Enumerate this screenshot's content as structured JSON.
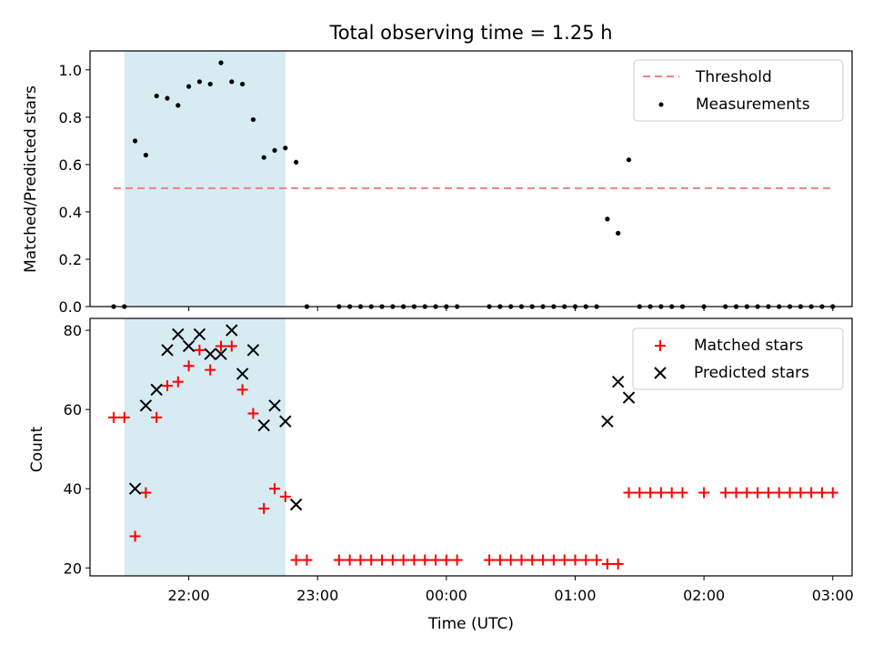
{
  "title": "Total observing time = 1.25 h",
  "colors": {
    "threshold": "#f08080",
    "measurement": "#000000",
    "matched": "#ff0000",
    "predicted": "#000000",
    "shade": "#add8e6"
  },
  "chart_data": [
    {
      "type": "scatter",
      "title": "Total observing time = 1.25 h",
      "ylabel": "Matched/Predicted stars",
      "xlabel": "",
      "ylim": [
        0,
        1.08
      ],
      "yticks": [
        "0.0",
        "0.2",
        "0.4",
        "0.6",
        "0.8",
        "1.0"
      ],
      "xlim": [
        "21:14",
        "03:09"
      ],
      "grid": false,
      "legend": "top-right",
      "shaded_region": [
        "21:30",
        "22:45"
      ],
      "threshold": {
        "name": "Threshold",
        "y": 0.5,
        "x": [
          "21:25",
          "03:00"
        ]
      },
      "series": [
        {
          "name": "Measurements",
          "points": [
            [
              "21:25",
              0
            ],
            [
              "21:30",
              0
            ],
            [
              "21:35",
              0.7
            ],
            [
              "21:40",
              0.64
            ],
            [
              "21:45",
              0.89
            ],
            [
              "21:50",
              0.88
            ],
            [
              "21:55",
              0.85
            ],
            [
              "22:00",
              0.93
            ],
            [
              "22:05",
              0.95
            ],
            [
              "22:10",
              0.94
            ],
            [
              "22:15",
              1.03
            ],
            [
              "22:20",
              0.95
            ],
            [
              "22:25",
              0.94
            ],
            [
              "22:30",
              0.79
            ],
            [
              "22:35",
              0.63
            ],
            [
              "22:40",
              0.66
            ],
            [
              "22:45",
              0.67
            ],
            [
              "22:50",
              0.61
            ],
            [
              "22:55",
              0
            ],
            [
              "23:10",
              0
            ],
            [
              "23:15",
              0
            ],
            [
              "23:20",
              0
            ],
            [
              "23:25",
              0
            ],
            [
              "23:30",
              0
            ],
            [
              "23:35",
              0
            ],
            [
              "23:40",
              0
            ],
            [
              "23:45",
              0
            ],
            [
              "23:50",
              0
            ],
            [
              "23:55",
              0
            ],
            [
              "00:00",
              0
            ],
            [
              "00:05",
              0
            ],
            [
              "00:20",
              0
            ],
            [
              "00:25",
              0
            ],
            [
              "00:30",
              0
            ],
            [
              "00:35",
              0
            ],
            [
              "00:40",
              0
            ],
            [
              "00:45",
              0
            ],
            [
              "00:50",
              0
            ],
            [
              "00:55",
              0
            ],
            [
              "01:00",
              0
            ],
            [
              "01:05",
              0
            ],
            [
              "01:10",
              0
            ],
            [
              "01:15",
              0.37
            ],
            [
              "01:20",
              0.31
            ],
            [
              "01:25",
              0.62
            ],
            [
              "01:30",
              0
            ],
            [
              "01:35",
              0
            ],
            [
              "01:40",
              0
            ],
            [
              "01:45",
              0
            ],
            [
              "01:50",
              0
            ],
            [
              "02:00",
              0
            ],
            [
              "02:10",
              0
            ],
            [
              "02:15",
              0
            ],
            [
              "02:20",
              0
            ],
            [
              "02:25",
              0
            ],
            [
              "02:30",
              0
            ],
            [
              "02:35",
              0
            ],
            [
              "02:40",
              0
            ],
            [
              "02:45",
              0
            ],
            [
              "02:50",
              0
            ],
            [
              "02:55",
              0
            ],
            [
              "03:00",
              0
            ]
          ]
        }
      ]
    },
    {
      "type": "scatter",
      "title": "",
      "ylabel": "Count",
      "xlabel": "Time (UTC)",
      "ylim": [
        18,
        83
      ],
      "yticks": [
        "20",
        "40",
        "60",
        "80"
      ],
      "xticks": [
        "22:00",
        "23:00",
        "00:00",
        "01:00",
        "02:00",
        "03:00"
      ],
      "xlim": [
        "21:14",
        "03:09"
      ],
      "grid": false,
      "legend": "top-right",
      "shaded_region": [
        "21:30",
        "22:45"
      ],
      "series": [
        {
          "name": "Matched stars",
          "marker": "+",
          "points": [
            [
              "21:25",
              58
            ],
            [
              "21:30",
              58
            ],
            [
              "21:35",
              28
            ],
            [
              "21:40",
              39
            ],
            [
              "21:45",
              58
            ],
            [
              "21:50",
              66
            ],
            [
              "21:55",
              67
            ],
            [
              "22:00",
              71
            ],
            [
              "22:05",
              75
            ],
            [
              "22:10",
              70
            ],
            [
              "22:15",
              76
            ],
            [
              "22:20",
              76
            ],
            [
              "22:25",
              65
            ],
            [
              "22:30",
              59
            ],
            [
              "22:35",
              35
            ],
            [
              "22:40",
              40
            ],
            [
              "22:45",
              38
            ],
            [
              "22:50",
              22
            ],
            [
              "22:55",
              22
            ],
            [
              "23:10",
              22
            ],
            [
              "23:15",
              22
            ],
            [
              "23:20",
              22
            ],
            [
              "23:25",
              22
            ],
            [
              "23:30",
              22
            ],
            [
              "23:35",
              22
            ],
            [
              "23:40",
              22
            ],
            [
              "23:45",
              22
            ],
            [
              "23:50",
              22
            ],
            [
              "23:55",
              22
            ],
            [
              "00:00",
              22
            ],
            [
              "00:05",
              22
            ],
            [
              "00:20",
              22
            ],
            [
              "00:25",
              22
            ],
            [
              "00:30",
              22
            ],
            [
              "00:35",
              22
            ],
            [
              "00:40",
              22
            ],
            [
              "00:45",
              22
            ],
            [
              "00:50",
              22
            ],
            [
              "00:55",
              22
            ],
            [
              "01:00",
              22
            ],
            [
              "01:05",
              22
            ],
            [
              "01:10",
              22
            ],
            [
              "01:15",
              21
            ],
            [
              "01:20",
              21
            ],
            [
              "01:25",
              39
            ],
            [
              "01:30",
              39
            ],
            [
              "01:35",
              39
            ],
            [
              "01:40",
              39
            ],
            [
              "01:45",
              39
            ],
            [
              "01:50",
              39
            ],
            [
              "02:00",
              39
            ],
            [
              "02:10",
              39
            ],
            [
              "02:15",
              39
            ],
            [
              "02:20",
              39
            ],
            [
              "02:25",
              39
            ],
            [
              "02:30",
              39
            ],
            [
              "02:35",
              39
            ],
            [
              "02:40",
              39
            ],
            [
              "02:45",
              39
            ],
            [
              "02:50",
              39
            ],
            [
              "02:55",
              39
            ],
            [
              "03:00",
              39
            ]
          ]
        },
        {
          "name": "Predicted stars",
          "marker": "x",
          "points": [
            [
              "21:35",
              40
            ],
            [
              "21:40",
              61
            ],
            [
              "21:45",
              65
            ],
            [
              "21:50",
              75
            ],
            [
              "21:55",
              79
            ],
            [
              "22:00",
              76
            ],
            [
              "22:05",
              79
            ],
            [
              "22:10",
              74
            ],
            [
              "22:15",
              74
            ],
            [
              "22:20",
              80
            ],
            [
              "22:25",
              69
            ],
            [
              "22:30",
              75
            ],
            [
              "22:35",
              56
            ],
            [
              "22:40",
              61
            ],
            [
              "22:45",
              57
            ],
            [
              "22:50",
              36
            ],
            [
              "01:15",
              57
            ],
            [
              "01:20",
              67
            ],
            [
              "01:25",
              63
            ]
          ]
        }
      ]
    }
  ]
}
